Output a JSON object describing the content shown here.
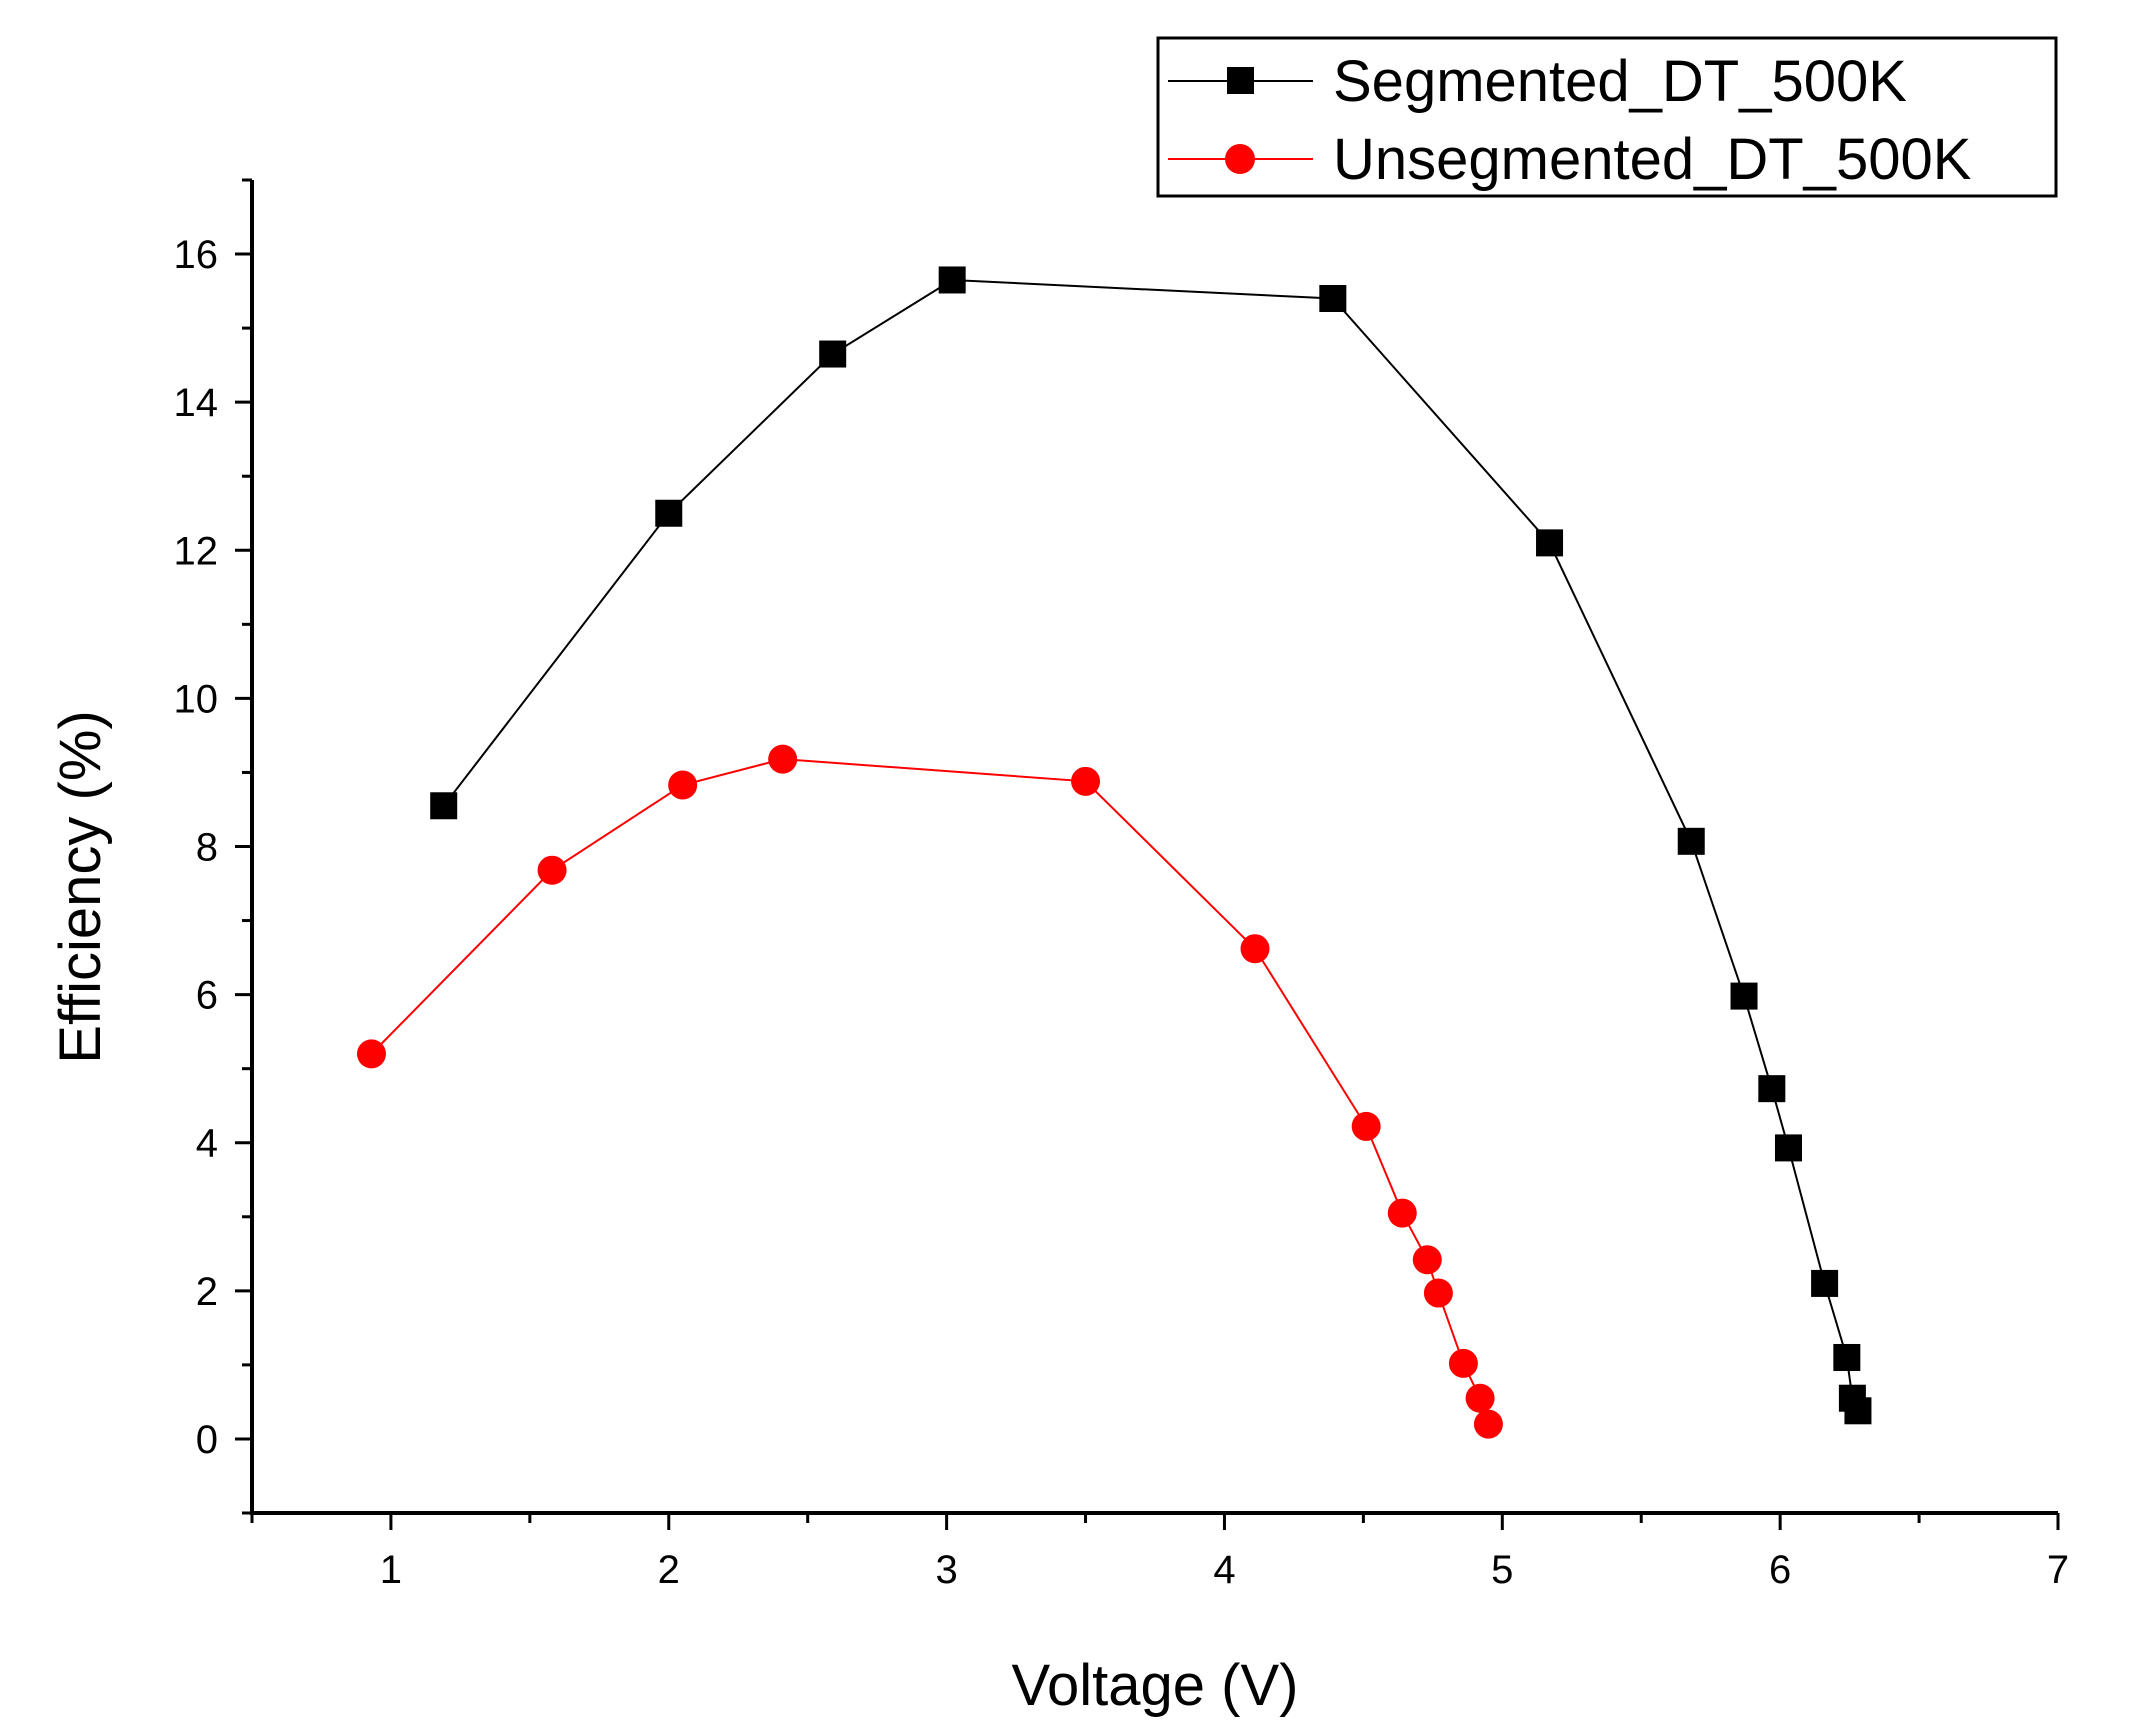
{
  "chart_data": {
    "type": "line",
    "title": "",
    "xlabel": "Voltage (V)",
    "ylabel": "Efficiency (%)",
    "xlim": [
      0.5,
      7
    ],
    "ylim": [
      -1,
      17
    ],
    "xticks": [
      1,
      2,
      3,
      4,
      5,
      6,
      7
    ],
    "yticks": [
      0,
      2,
      4,
      6,
      8,
      10,
      12,
      14,
      16
    ],
    "legend_position": "top-right",
    "grid": false,
    "series": [
      {
        "name": "Segmented_DT_500K",
        "color": "#000000",
        "marker": "square",
        "x": [
          1.19,
          2.0,
          2.59,
          3.02,
          4.39,
          5.17,
          5.68,
          5.87,
          5.97,
          6.03,
          6.16,
          6.24,
          6.26,
          6.28
        ],
        "y": [
          8.55,
          12.5,
          14.65,
          15.65,
          15.4,
          12.1,
          8.07,
          5.98,
          4.73,
          3.93,
          2.1,
          1.1,
          0.55,
          0.38
        ]
      },
      {
        "name": "Unsegmented_DT_500K",
        "color": "#ff0000",
        "marker": "circle",
        "x": [
          0.93,
          1.58,
          2.05,
          2.41,
          3.5,
          4.11,
          4.51,
          4.64,
          4.73,
          4.77,
          4.86,
          4.92,
          4.95
        ],
        "y": [
          5.2,
          7.68,
          8.83,
          9.18,
          8.88,
          6.62,
          4.22,
          3.05,
          2.42,
          1.97,
          1.02,
          0.55,
          0.2
        ]
      }
    ]
  }
}
